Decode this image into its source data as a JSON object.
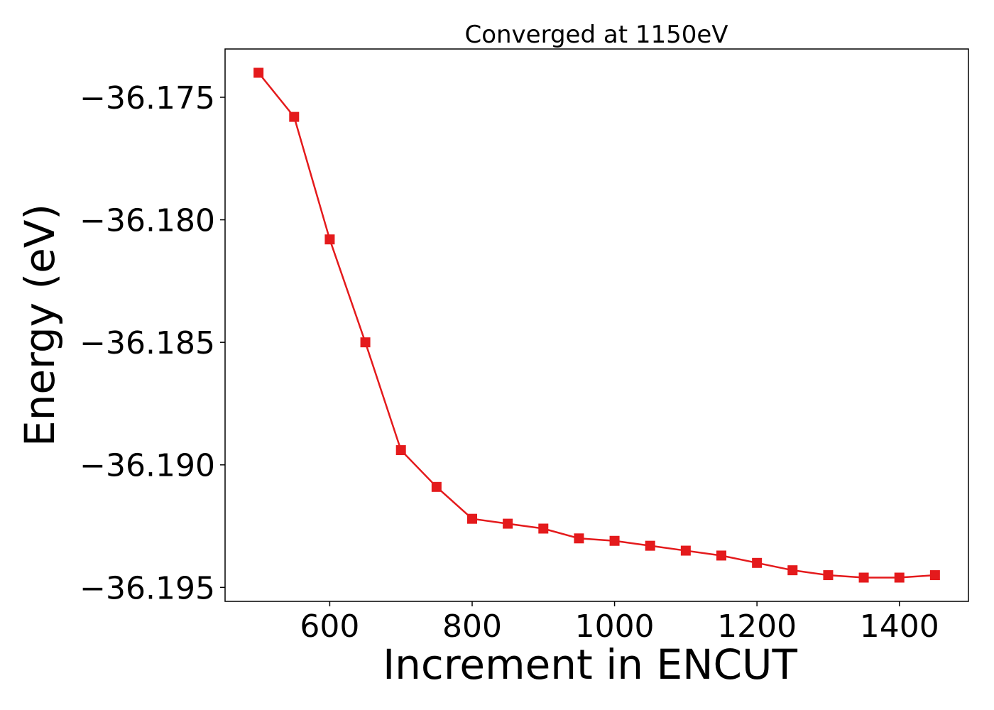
{
  "chart_data": {
    "type": "line",
    "title": "Converged at 1150eV",
    "xlabel": "Increment in ENCUT",
    "ylabel": "Energy (eV)",
    "x": [
      500,
      550,
      600,
      650,
      700,
      750,
      800,
      850,
      900,
      950,
      1000,
      1050,
      1100,
      1150,
      1200,
      1250,
      1300,
      1350,
      1400,
      1450
    ],
    "series": [
      {
        "values": [
          -36.174,
          -36.1758,
          -36.1808,
          -36.185,
          -36.1894,
          -36.1909,
          -36.1922,
          -36.1924,
          -36.1926,
          -36.193,
          -36.1931,
          -36.1933,
          -36.1935,
          -36.1937,
          -36.194,
          -36.1943,
          -36.1945,
          -36.1946,
          -36.1946,
          -36.1945
        ],
        "color": "#e41a1c",
        "marker": "square"
      }
    ],
    "xlim": [
      453,
      1497
    ],
    "ylim": [
      -36.19557,
      -36.17303
    ],
    "xticks": [
      600,
      800,
      1000,
      1200,
      1400
    ],
    "xtick_labels": [
      "600",
      "800",
      "1000",
      "1200",
      "1400"
    ],
    "yticks": [
      -36.175,
      -36.18,
      -36.185,
      -36.19,
      -36.195
    ],
    "ytick_labels": [
      "−36.175",
      "−36.180",
      "−36.185",
      "−36.190",
      "−36.195"
    ],
    "grid": false,
    "legend": "none"
  }
}
